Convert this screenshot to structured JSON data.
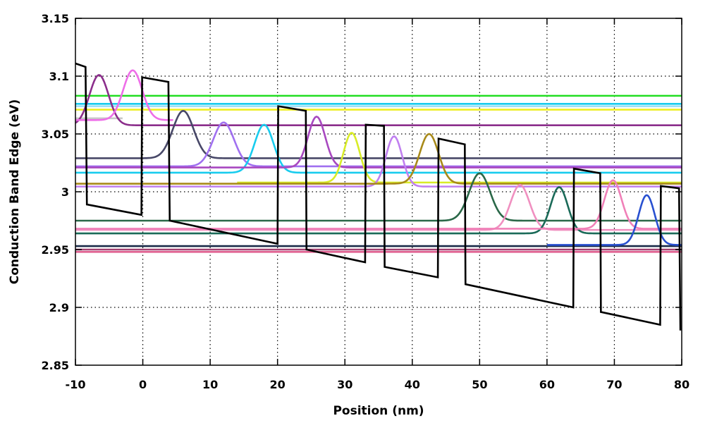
{
  "chart_data": {
    "type": "line",
    "title": "",
    "xlabel": "Position (nm)",
    "ylabel": "Conduction Band Edge  (eV)",
    "xlim": [
      -10,
      80
    ],
    "ylim": [
      2.85,
      3.15
    ],
    "x_ticks": [
      -10,
      0,
      10,
      20,
      30,
      40,
      50,
      60,
      70,
      80
    ],
    "y_ticks": [
      2.85,
      2.9,
      2.95,
      3,
      3.05,
      3.1,
      3.15
    ],
    "x_tick_labels": [
      "-10",
      "0",
      "10",
      "20",
      "30",
      "40",
      "50",
      "60",
      "70",
      "80"
    ],
    "y_tick_labels": [
      "2.85",
      "2.9",
      "2.95",
      "3",
      "3.05",
      "3.1",
      "3.15"
    ],
    "grid": true,
    "grid_style": "dotted",
    "legend": "none",
    "band_edge": {
      "color": "#000000",
      "points": [
        [
          -10,
          3.111
        ],
        [
          -8.5,
          3.108
        ],
        [
          -8.3,
          2.989
        ],
        [
          -0.2,
          2.98
        ],
        [
          -0.1,
          3.099
        ],
        [
          3.8,
          3.095
        ],
        [
          4.0,
          2.975
        ],
        [
          20.0,
          2.955
        ],
        [
          20.1,
          3.074
        ],
        [
          24.2,
          3.07
        ],
        [
          24.3,
          2.95
        ],
        [
          33.0,
          2.939
        ],
        [
          33.1,
          3.058
        ],
        [
          35.8,
          3.057
        ],
        [
          35.9,
          2.935
        ],
        [
          43.8,
          2.926
        ],
        [
          43.9,
          3.046
        ],
        [
          47.8,
          3.041
        ],
        [
          47.9,
          2.92
        ],
        [
          63.9,
          2.9
        ],
        [
          64.0,
          3.02
        ],
        [
          67.9,
          3.016
        ],
        [
          68.0,
          2.896
        ],
        [
          76.8,
          2.885
        ],
        [
          76.9,
          3.005
        ],
        [
          79.6,
          3.003
        ],
        [
          79.8,
          2.88
        ]
      ]
    },
    "series": [
      {
        "color": "#c8c8c8",
        "level": 3.0635,
        "peak": 3.0635,
        "center": -8.0,
        "width": 1.5,
        "x_start": -10,
        "x_end": -3.0
      },
      {
        "color": "#8b2e8b",
        "level": 3.0575,
        "peak": 3.101,
        "center": -6.5,
        "width": 2.0,
        "x_start": -10,
        "x_end": 80
      },
      {
        "color": "#ee6ee8",
        "level": 3.062,
        "peak": 3.105,
        "center": -1.5,
        "width": 2.0,
        "x_start": -10,
        "x_end": 4.5
      },
      {
        "color": "#484868",
        "level": 3.029,
        "peak": 3.07,
        "center": 6.0,
        "width": 2.2,
        "x_start": -10,
        "x_end": 80
      },
      {
        "color": "#a070f0",
        "level": 3.022,
        "peak": 3.06,
        "center": 12.0,
        "width": 2.2,
        "x_start": -10,
        "x_end": 80
      },
      {
        "color": "#18ccee",
        "level": 3.0165,
        "peak": 3.058,
        "center": 18.0,
        "width": 2.0,
        "x_start": -10,
        "x_end": 80
      },
      {
        "color": "#a848c0",
        "level": 3.021,
        "peak": 3.065,
        "center": 25.8,
        "width": 1.8,
        "x_start": -10,
        "x_end": 80
      },
      {
        "color": "#d8ec28",
        "level": 3.008,
        "peak": 3.051,
        "center": 31.0,
        "width": 1.7,
        "x_start": 14.0,
        "x_end": 80
      },
      {
        "color": "#c080f0",
        "level": 3.0045,
        "peak": 3.048,
        "center": 37.3,
        "width": 1.7,
        "x_start": -10,
        "x_end": 80
      },
      {
        "color": "#a88a1a",
        "level": 3.007,
        "peak": 3.05,
        "center": 42.5,
        "width": 2.0,
        "x_start": -10,
        "x_end": 80
      },
      {
        "color": "#2a6848",
        "level": 2.975,
        "peak": 3.016,
        "center": 50.0,
        "width": 2.2,
        "x_start": -10,
        "x_end": 80
      },
      {
        "color": "#f090c0",
        "level": 2.967,
        "peak": 3.006,
        "center": 56.0,
        "width": 2.0,
        "x_start": -10,
        "x_end": 80
      },
      {
        "color": "#1a6a58",
        "level": 2.964,
        "peak": 3.004,
        "center": 61.8,
        "width": 1.8,
        "x_start": -10,
        "x_end": 80
      },
      {
        "color": "#f080b8",
        "level": 2.968,
        "peak": 3.01,
        "center": 69.8,
        "width": 1.8,
        "x_start": -10,
        "x_end": 80
      },
      {
        "color": "#2850d0",
        "level": 2.954,
        "peak": 2.997,
        "center": 74.8,
        "width": 1.7,
        "x_start": 60.0,
        "x_end": 80
      }
    ],
    "level_lines": [
      {
        "value": 3.083,
        "color": "#22dd22"
      },
      {
        "value": 3.076,
        "color": "#18ccee"
      },
      {
        "value": 3.074,
        "color": "#9ee0f8"
      },
      {
        "value": 3.071,
        "color": "#eeee22"
      },
      {
        "value": 2.953,
        "color": "#1a2a48"
      },
      {
        "value": 2.95,
        "color": "#a04070"
      },
      {
        "value": 2.948,
        "color": "#e06090"
      }
    ]
  }
}
